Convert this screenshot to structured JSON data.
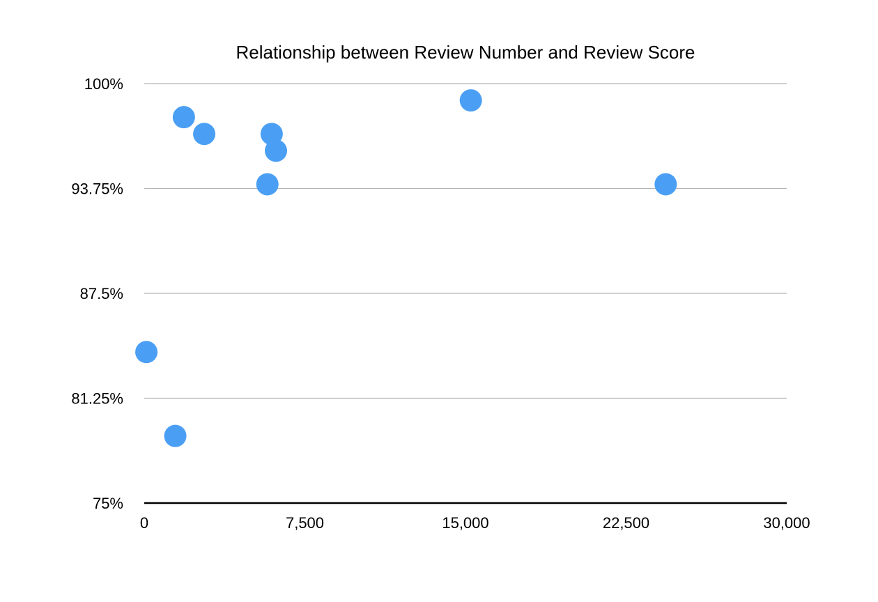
{
  "chart_data": {
    "type": "scatter",
    "title": "Relationship between Review Number and Review Score",
    "xlabel": "",
    "ylabel": "",
    "xlim": [
      0,
      30000
    ],
    "ylim": [
      0.75,
      1.0
    ],
    "x_ticks": [
      {
        "value": 0,
        "label": "0"
      },
      {
        "value": 7500,
        "label": "7,500"
      },
      {
        "value": 15000,
        "label": "15,000"
      },
      {
        "value": 22500,
        "label": "22,500"
      },
      {
        "value": 30000,
        "label": "30,000"
      }
    ],
    "y_ticks": [
      {
        "value": 0.75,
        "label": "75%"
      },
      {
        "value": 0.8125,
        "label": "81.25%"
      },
      {
        "value": 0.875,
        "label": "87.5%"
      },
      {
        "value": 0.9375,
        "label": "93.75%"
      },
      {
        "value": 1.0,
        "label": "100%"
      }
    ],
    "grid": true,
    "legend": "none",
    "marker_color": "#4a9ff5",
    "series": [
      {
        "points": [
          {
            "x": 100,
            "y": 0.84
          },
          {
            "x": 1450,
            "y": 0.79
          },
          {
            "x": 1850,
            "y": 0.98
          },
          {
            "x": 2800,
            "y": 0.97
          },
          {
            "x": 5750,
            "y": 0.94
          },
          {
            "x": 5950,
            "y": 0.97
          },
          {
            "x": 6150,
            "y": 0.96
          },
          {
            "x": 15250,
            "y": 0.99
          },
          {
            "x": 24350,
            "y": 0.94
          }
        ]
      }
    ]
  }
}
